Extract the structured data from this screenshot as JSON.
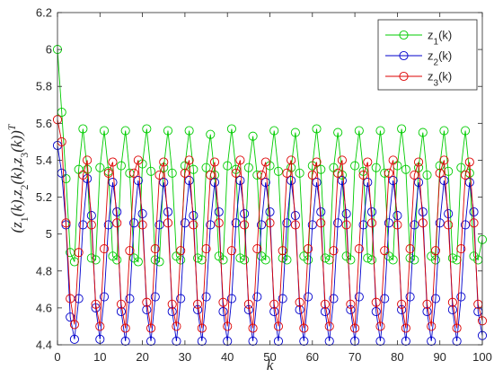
{
  "chart_data": {
    "type": "line",
    "xlabel": "k",
    "ylabel": "(z_1(k),z_2(k),z_3(k))^T",
    "xlim": [
      0,
      100
    ],
    "ylim": [
      4.4,
      6.2
    ],
    "x_ticks": [
      0,
      10,
      20,
      30,
      40,
      50,
      60,
      70,
      80,
      90,
      100
    ],
    "y_ticks": [
      4.4,
      4.6,
      4.8,
      5,
      5.2,
      5.4,
      5.6,
      5.8,
      6,
      6.2
    ],
    "x_tick_labels": [
      "0",
      "10",
      "20",
      "30",
      "40",
      "50",
      "60",
      "70",
      "80",
      "90",
      "100"
    ],
    "y_tick_labels": [
      "4.4",
      "4.6",
      "4.8",
      "5",
      "5.2",
      "5.4",
      "5.6",
      "5.8",
      "6",
      "6.2"
    ],
    "grid": false,
    "legend_position": "top-right",
    "marker": "circle-open",
    "x": [
      0,
      1,
      2,
      3,
      4,
      5,
      6,
      7,
      8,
      9,
      10,
      11,
      12,
      13,
      14,
      15,
      16,
      17,
      18,
      19,
      20,
      21,
      22,
      23,
      24,
      25,
      26,
      27,
      28,
      29,
      30,
      31,
      32,
      33,
      34,
      35,
      36,
      37,
      38,
      39,
      40,
      41,
      42,
      43,
      44,
      45,
      46,
      47,
      48,
      49,
      50,
      51,
      52,
      53,
      54,
      55,
      56,
      57,
      58,
      59,
      60,
      61,
      62,
      63,
      64,
      65,
      66,
      67,
      68,
      69,
      70,
      71,
      72,
      73,
      74,
      75,
      76,
      77,
      78,
      79,
      80,
      81,
      82,
      83,
      84,
      85,
      86,
      87,
      88,
      89,
      90,
      91,
      92,
      93,
      94,
      95,
      96,
      97,
      98,
      99,
      100
    ],
    "series": [
      {
        "name": "z1(k)",
        "sub": "1",
        "color": "#00cc00",
        "values": [
          6.0,
          5.66,
          5.3,
          4.9,
          4.85,
          5.35,
          5.57,
          5.35,
          4.87,
          4.86,
          5.36,
          5.56,
          5.34,
          4.88,
          4.86,
          5.37,
          5.56,
          5.33,
          4.87,
          4.85,
          5.38,
          5.57,
          5.34,
          4.86,
          4.85,
          5.36,
          5.56,
          5.33,
          4.88,
          4.86,
          5.37,
          5.56,
          5.35,
          4.87,
          4.86,
          5.36,
          5.54,
          5.32,
          4.88,
          4.86,
          5.37,
          5.57,
          5.35,
          4.87,
          4.86,
          5.36,
          5.53,
          5.32,
          4.88,
          4.86,
          5.37,
          5.56,
          5.34,
          4.87,
          4.86,
          5.36,
          5.55,
          5.33,
          4.88,
          4.86,
          5.37,
          5.57,
          5.35,
          4.87,
          4.86,
          5.36,
          5.55,
          5.32,
          4.88,
          4.86,
          5.37,
          5.56,
          5.34,
          4.87,
          4.86,
          5.36,
          5.56,
          5.33,
          4.88,
          4.86,
          5.37,
          5.57,
          5.35,
          4.87,
          4.86,
          5.36,
          5.55,
          5.32,
          4.88,
          4.86,
          5.37,
          5.56,
          5.34,
          4.87,
          4.86,
          5.36,
          5.56,
          5.33,
          4.88,
          4.86,
          4.97
        ]
      },
      {
        "name": "z2(k)",
        "sub": "2",
        "color": "#0000cc",
        "values": [
          5.48,
          5.33,
          5.05,
          4.55,
          4.43,
          4.65,
          5.05,
          5.3,
          5.1,
          4.6,
          4.43,
          4.66,
          5.05,
          5.28,
          5.12,
          4.58,
          4.42,
          4.65,
          5.06,
          5.29,
          5.11,
          4.59,
          4.42,
          4.66,
          5.05,
          5.28,
          5.12,
          4.58,
          4.42,
          4.65,
          5.06,
          5.29,
          5.1,
          4.59,
          4.42,
          4.66,
          5.05,
          5.28,
          5.12,
          4.58,
          4.42,
          4.65,
          5.06,
          5.29,
          5.11,
          4.59,
          4.42,
          4.66,
          5.05,
          5.28,
          5.12,
          4.58,
          4.42,
          4.65,
          5.06,
          5.29,
          5.1,
          4.59,
          4.42,
          4.66,
          5.05,
          5.28,
          5.12,
          4.58,
          4.42,
          4.65,
          5.06,
          5.29,
          5.11,
          4.59,
          4.42,
          4.66,
          5.05,
          5.28,
          5.12,
          4.58,
          4.42,
          4.65,
          5.06,
          5.29,
          5.1,
          4.59,
          4.42,
          4.66,
          5.05,
          5.28,
          5.12,
          4.58,
          4.42,
          4.65,
          5.06,
          5.29,
          5.11,
          4.59,
          4.42,
          4.66,
          5.05,
          5.28,
          5.12,
          4.58,
          4.45
        ]
      },
      {
        "name": "z3(k)",
        "sub": "3",
        "color": "#dd0000",
        "values": [
          5.62,
          5.5,
          5.06,
          4.65,
          4.51,
          4.9,
          5.32,
          5.4,
          5.05,
          4.62,
          4.5,
          4.92,
          5.33,
          5.39,
          5.06,
          4.62,
          4.49,
          4.91,
          5.33,
          5.4,
          5.05,
          4.63,
          4.49,
          4.92,
          5.32,
          5.39,
          5.06,
          4.62,
          4.5,
          4.91,
          5.33,
          5.4,
          5.05,
          4.62,
          4.49,
          4.92,
          5.32,
          5.39,
          5.06,
          4.63,
          4.5,
          4.91,
          5.33,
          5.4,
          5.05,
          4.62,
          4.49,
          4.92,
          5.32,
          5.39,
          5.06,
          4.62,
          4.5,
          4.91,
          5.33,
          5.4,
          5.05,
          4.63,
          4.49,
          4.92,
          5.32,
          5.39,
          5.06,
          4.62,
          4.5,
          4.91,
          5.33,
          5.4,
          5.05,
          4.62,
          4.49,
          4.92,
          5.32,
          5.39,
          5.06,
          4.63,
          4.5,
          4.91,
          5.33,
          5.4,
          5.05,
          4.62,
          4.49,
          4.92,
          5.32,
          5.39,
          5.06,
          4.62,
          4.5,
          4.91,
          5.33,
          5.4,
          5.05,
          4.63,
          4.49,
          4.92,
          5.32,
          5.39,
          5.06,
          4.62,
          4.53
        ]
      }
    ]
  }
}
